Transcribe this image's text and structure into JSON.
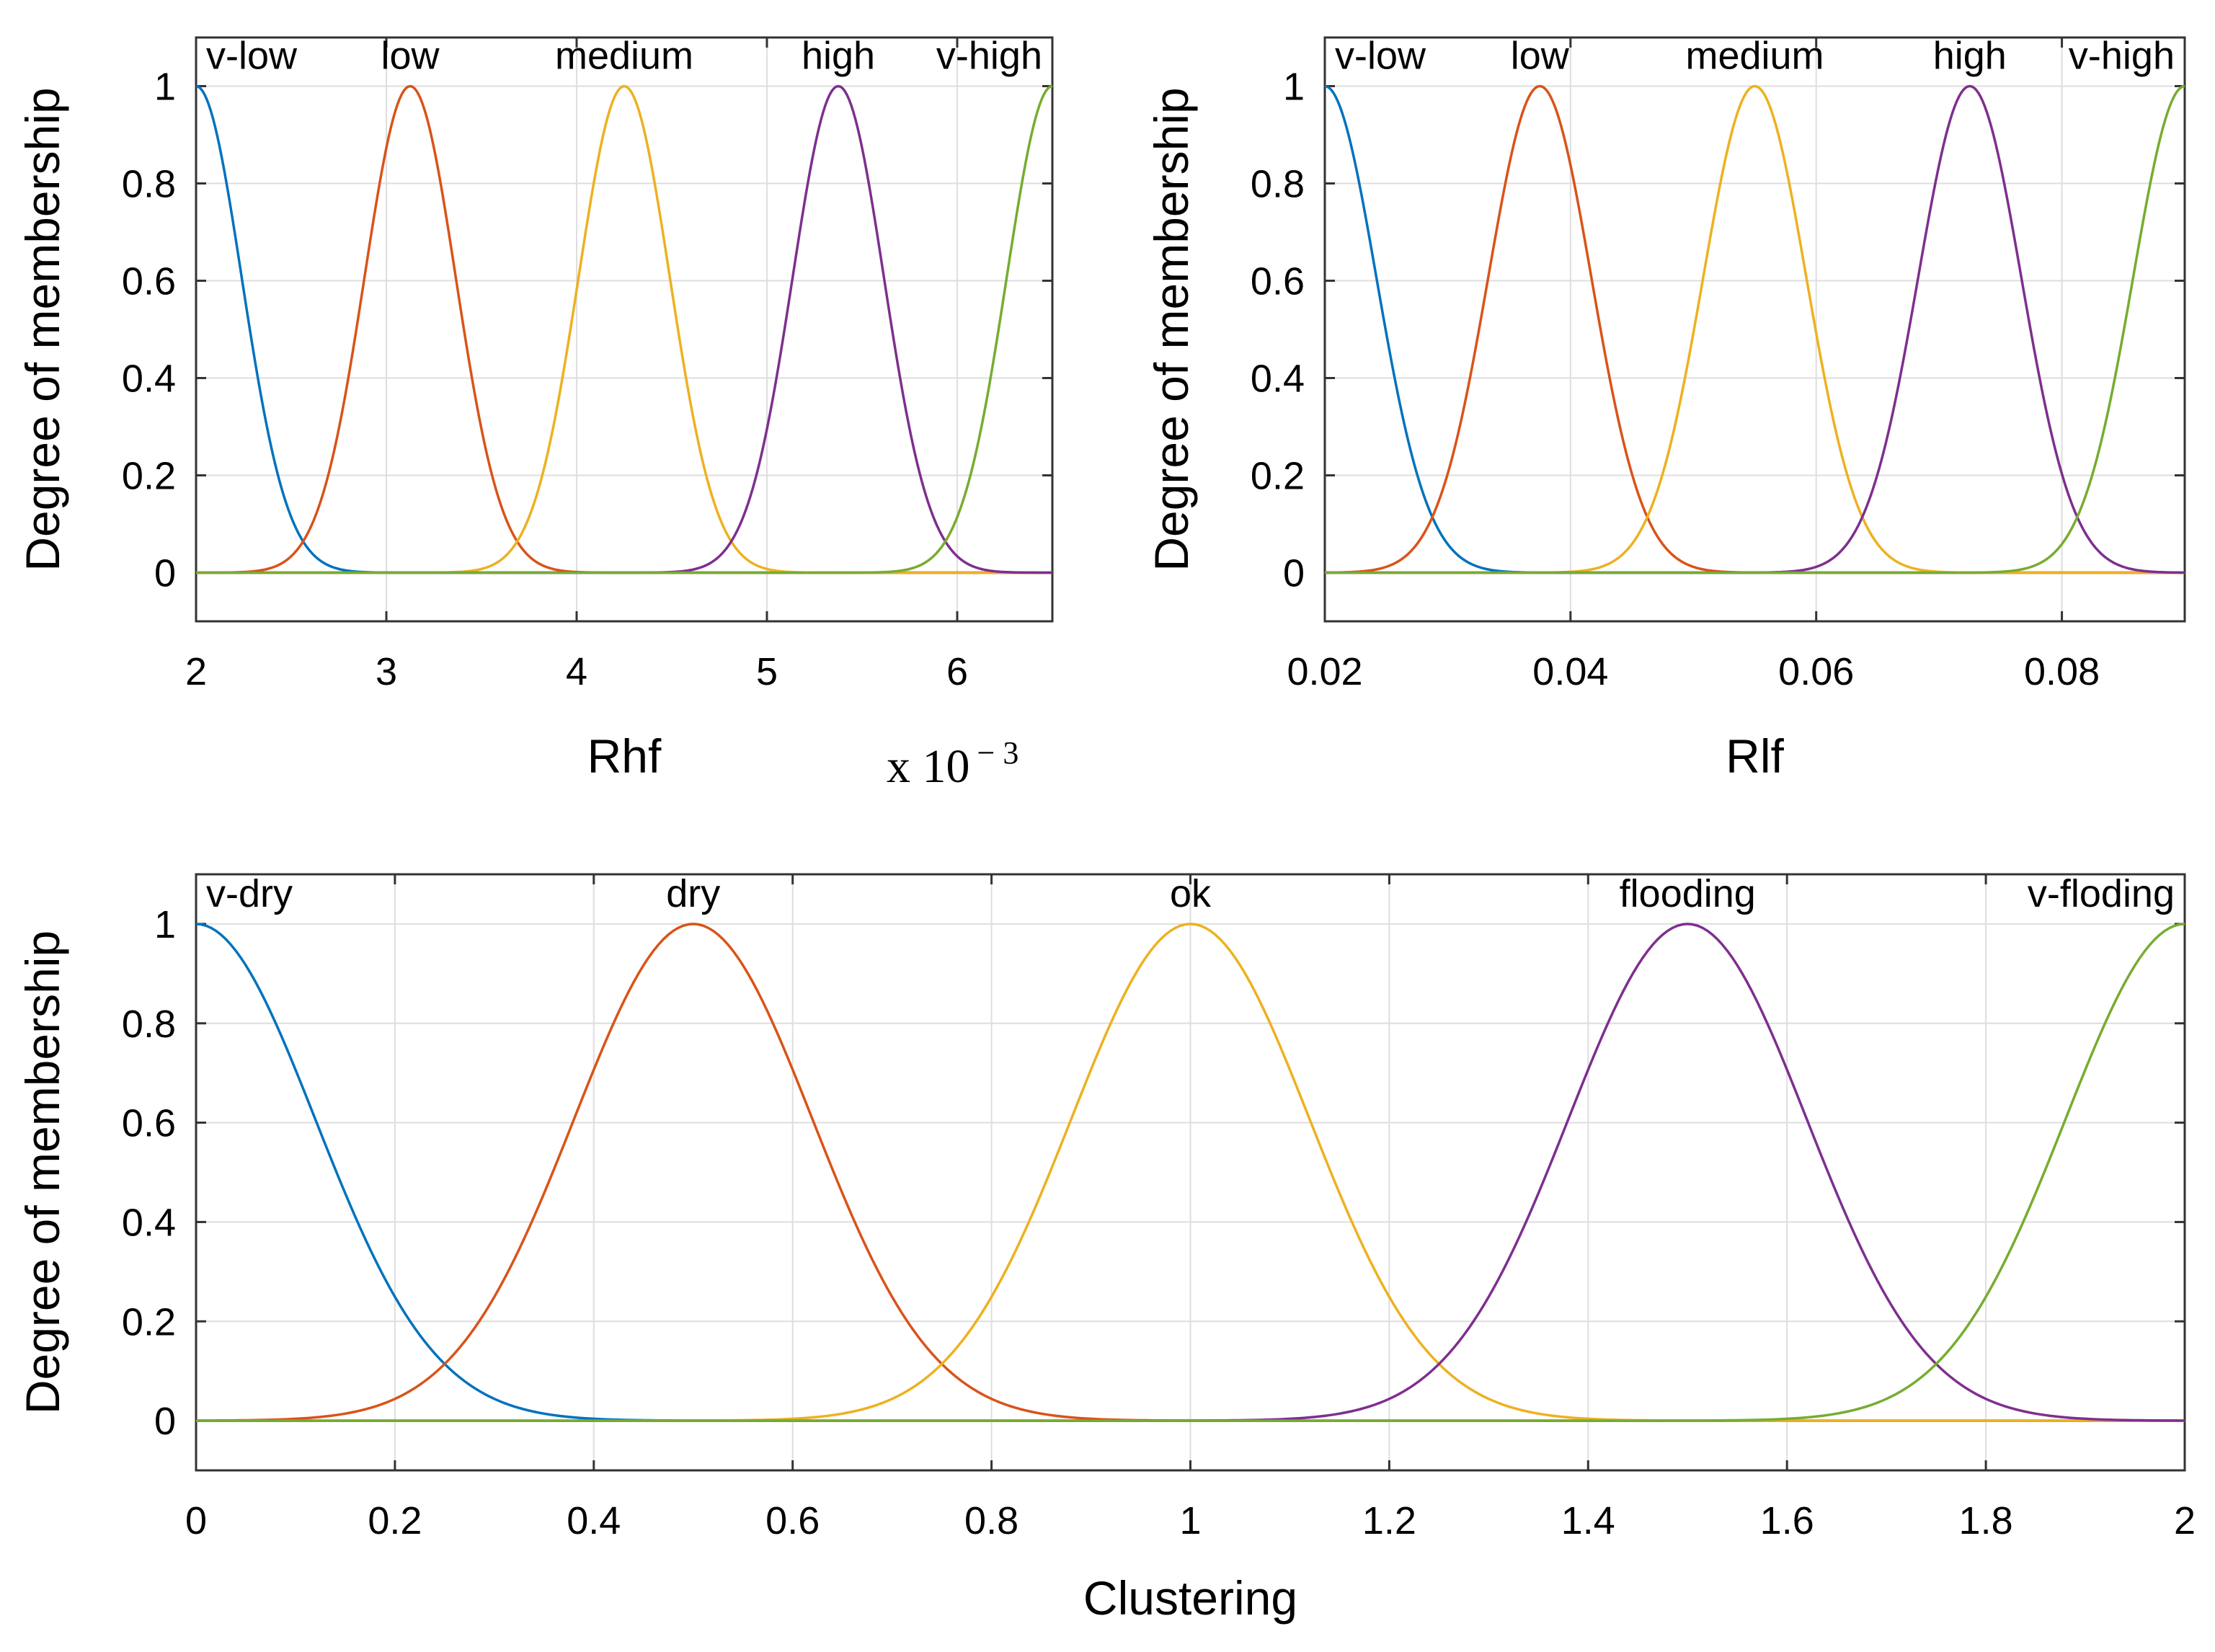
{
  "colors": {
    "blue": "#0072BD",
    "orange": "#D95319",
    "yellow": "#EDB120",
    "purple": "#7E2F8E",
    "green": "#77AC30"
  },
  "chart_data": [
    {
      "type": "line",
      "xlabel": "Rhf",
      "ylabel": "Degree of membership",
      "x_multiplier": {
        "base": "x 10",
        "exponent": "− 3"
      },
      "xlim": [
        2,
        6.5
      ],
      "ylim": [
        -0.1,
        1.1
      ],
      "x_ticks": [
        2,
        3,
        4,
        5,
        6
      ],
      "x_tick_labels": [
        "2",
        "3",
        "4",
        "5",
        "6"
      ],
      "y_ticks": [
        0,
        0.2,
        0.4,
        0.6,
        0.8,
        1
      ],
      "y_tick_labels": [
        "0",
        "0.2",
        "0.4",
        "0.6",
        "0.8",
        "1"
      ],
      "grid": true,
      "series": [
        {
          "name": "v-low",
          "shape": "gaussian",
          "center": 2.0,
          "sigma": 0.24,
          "color": "blue"
        },
        {
          "name": "low",
          "shape": "gaussian",
          "center": 3.125,
          "sigma": 0.24,
          "color": "orange"
        },
        {
          "name": "medium",
          "shape": "gaussian",
          "center": 4.25,
          "sigma": 0.24,
          "color": "yellow"
        },
        {
          "name": "high",
          "shape": "gaussian",
          "center": 5.375,
          "sigma": 0.24,
          "color": "purple"
        },
        {
          "name": "v-high",
          "shape": "gaussian",
          "center": 6.5,
          "sigma": 0.24,
          "color": "green"
        }
      ]
    },
    {
      "type": "line",
      "xlabel": "Rlf",
      "ylabel": "Degree of membership",
      "xlim": [
        0.02,
        0.09
      ],
      "ylim": [
        -0.1,
        1.1
      ],
      "x_ticks": [
        0.02,
        0.04,
        0.06,
        0.08
      ],
      "x_tick_labels": [
        "0.02",
        "0.04",
        "0.06",
        "0.08"
      ],
      "y_ticks": [
        0,
        0.2,
        0.4,
        0.6,
        0.8,
        1
      ],
      "y_tick_labels": [
        "0",
        "0.2",
        "0.4",
        "0.6",
        "0.8",
        "1"
      ],
      "grid": true,
      "series": [
        {
          "name": "v-low",
          "shape": "gaussian",
          "center": 0.02,
          "sigma": 0.0042,
          "color": "blue"
        },
        {
          "name": "low",
          "shape": "gaussian",
          "center": 0.0375,
          "sigma": 0.0042,
          "color": "orange"
        },
        {
          "name": "medium",
          "shape": "gaussian",
          "center": 0.055,
          "sigma": 0.0042,
          "color": "yellow"
        },
        {
          "name": "high",
          "shape": "gaussian",
          "center": 0.0725,
          "sigma": 0.0042,
          "color": "purple"
        },
        {
          "name": "v-high",
          "shape": "gaussian",
          "center": 0.09,
          "sigma": 0.0042,
          "color": "green"
        }
      ]
    },
    {
      "type": "line",
      "xlabel": "Clustering",
      "ylabel": "Degree of membership",
      "xlim": [
        0,
        2
      ],
      "ylim": [
        -0.1,
        1.1
      ],
      "x_ticks": [
        0,
        0.2,
        0.4,
        0.6,
        0.8,
        1,
        1.2,
        1.4,
        1.6,
        1.8,
        2
      ],
      "x_tick_labels": [
        "0",
        "0.2",
        "0.4",
        "0.6",
        "0.8",
        "1",
        "1.2",
        "1.4",
        "1.6",
        "1.8",
        "2"
      ],
      "y_ticks": [
        0,
        0.2,
        0.4,
        0.6,
        0.8,
        1
      ],
      "y_tick_labels": [
        "0",
        "0.2",
        "0.4",
        "0.6",
        "0.8",
        "1"
      ],
      "grid": true,
      "series": [
        {
          "name": "v-dry",
          "shape": "gaussian",
          "center": 0.0,
          "sigma": 0.12,
          "color": "blue"
        },
        {
          "name": "dry",
          "shape": "gaussian",
          "center": 0.5,
          "sigma": 0.12,
          "color": "orange"
        },
        {
          "name": "ok",
          "shape": "gaussian",
          "center": 1.0,
          "sigma": 0.12,
          "color": "yellow"
        },
        {
          "name": "flooding",
          "shape": "gaussian",
          "center": 1.5,
          "sigma": 0.12,
          "color": "purple"
        },
        {
          "name": "v-floding",
          "shape": "gaussian",
          "center": 2.0,
          "sigma": 0.12,
          "color": "green"
        }
      ]
    }
  ]
}
